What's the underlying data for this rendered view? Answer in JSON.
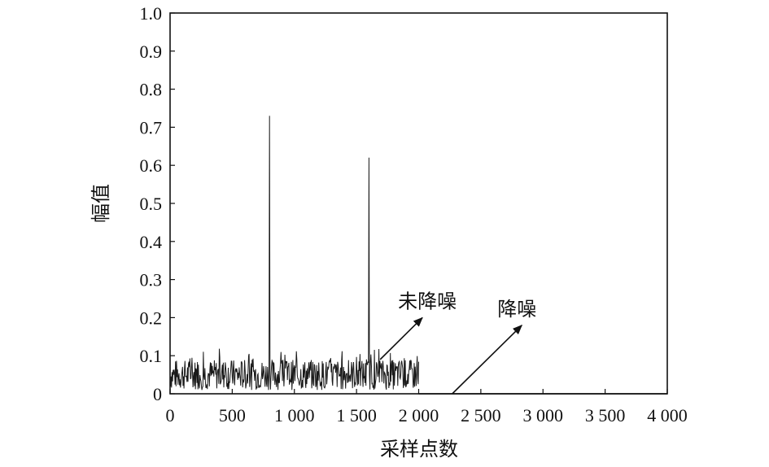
{
  "chart_data": {
    "type": "line",
    "xlabel": "采样点数",
    "ylabel": "幅值",
    "xlim": [
      0,
      4000
    ],
    "ylim": [
      0,
      1.0
    ],
    "x_ticks": [
      0,
      500,
      1000,
      1500,
      2000,
      2500,
      3000,
      3500,
      4000
    ],
    "x_tick_labels": [
      "0",
      "500",
      "1 000",
      "1 500",
      "2 000",
      "2 500",
      "3 000",
      "3 500",
      "4 000"
    ],
    "y_ticks": [
      0,
      0.1,
      0.2,
      0.3,
      0.4,
      0.5,
      0.6,
      0.7,
      0.8,
      0.9,
      1.0
    ],
    "y_tick_labels": [
      "0",
      "0.1",
      "0.2",
      "0.3",
      "0.4",
      "0.5",
      "0.6",
      "0.7",
      "0.8",
      "0.9",
      "1.0"
    ],
    "grid": false,
    "series": [
      {
        "label": "未降噪",
        "x_range": [
          0,
          2000
        ],
        "noise_range": [
          0,
          0.1
        ],
        "peaks": [
          {
            "x": 800,
            "y": 0.73
          },
          {
            "x": 1600,
            "y": 0.62
          }
        ]
      },
      {
        "label": "降噪",
        "x_range": [
          2000,
          4000
        ],
        "values_constant": 0
      }
    ],
    "annotations": [
      {
        "text": "未降噪",
        "arrow_from": [
          1690,
          0.09
        ],
        "arrow_to": [
          2030,
          0.2
        ]
      },
      {
        "text": "降噪",
        "arrow_from": [
          2270,
          0.0
        ],
        "arrow_to": [
          2830,
          0.18
        ]
      }
    ]
  }
}
